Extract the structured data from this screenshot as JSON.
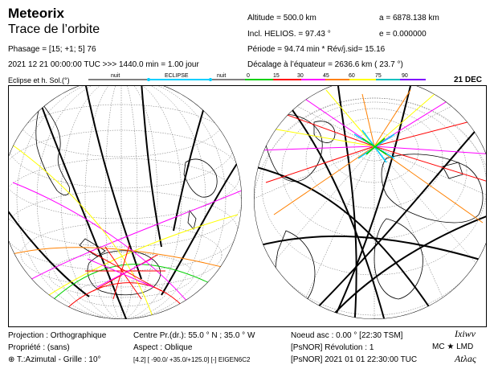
{
  "header": {
    "app_title": "Meteorix",
    "subtitle": "Trace de l’orbite",
    "phasage": "Phasage  = [15; +1;  5]  76",
    "date_line": "2021 12 21 00:00:00 TUC  >>>   1440.0 min =   1.00 jour",
    "eclipse_label": "Eclipse et h. Sol.(°)",
    "date_badge": "21 DEC"
  },
  "orbit_params": {
    "altitude": "Altitude =  500.0 km",
    "semi_major": "a = 6878.138 km",
    "inclination": "Incl. HELIOS. = 97.43 °",
    "eccentricity": "e = 0.000000",
    "period": "Période =  94.74 min  * Rév/j.sid= 15.16",
    "offset": "Décalage à l’équateur = 2636.6 km  ( 23.7 °)"
  },
  "legend": {
    "labels": [
      "nuit",
      "ECLIPSE",
      "nuit",
      "0",
      "15",
      "30",
      "45",
      "60",
      "75",
      "90"
    ],
    "colors": {
      "night": "#000000",
      "eclipse": "#00cfff",
      "h0": "#00d000",
      "h15": "#ff0000",
      "h30": "#ff00ff",
      "h45": "#ff8000",
      "h60": "#ffff00",
      "h75": "#00c0c0",
      "h90": "#8000ff"
    }
  },
  "footer": {
    "projection": "Projection : Orthographique",
    "property": "Propriété : (sans)",
    "grid": "⊕ T.:Azimutal - Grille  :  10°",
    "center": "Centre Pr.(dr.): 55.0 ° N ;  35.0 ° W",
    "aspect": "Aspect : Oblique",
    "model": "[4.2] [ -90.0/ +35.0/+125.0] [-]   EIGEN6C2",
    "node": "Noeud asc :    0.00 ° [22:30 TSM]",
    "revolution": "[PsNOR] Révolution :     1",
    "epoch": "[PsNOR] 2021 01 01 22:30:00 TUC",
    "logo1": "Ixiwv",
    "logo_mc": "MC ★ LMD",
    "logo2": "Atλaς"
  }
}
